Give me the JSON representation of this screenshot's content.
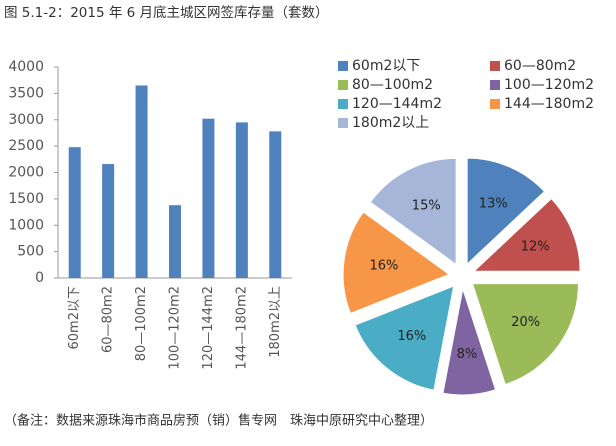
{
  "title": "图 5.1-2：2015 年 6 月底主城区网签库存量（套数）",
  "note": "（备注：数据来源珠海市商品房预（销）售专网　珠海中原研究中心整理）",
  "chart_data": [
    {
      "type": "bar",
      "categories": [
        "60m2以下",
        "60—80m2",
        "80—100m2",
        "100—120m2",
        "120—144m2",
        "144—180m2",
        "180m2以上"
      ],
      "values": [
        2480,
        2160,
        3650,
        1380,
        3020,
        2950,
        2780
      ],
      "color": "#4f81bd",
      "ylim": [
        0,
        4000
      ],
      "yticks": [
        0,
        500,
        1000,
        1500,
        2000,
        2500,
        3000,
        3500,
        4000
      ],
      "grid": false
    },
    {
      "type": "pie",
      "categories": [
        "60m2以下",
        "60—80m2",
        "80—100m2",
        "100—120m2",
        "120—144m2",
        "144—180m2",
        "180m2以上"
      ],
      "values": [
        13,
        12,
        20,
        8,
        16,
        16,
        15
      ],
      "value_labels": [
        "13%",
        "12%",
        "20%",
        "8%",
        "16%",
        "16%",
        "15%"
      ],
      "colors": [
        "#4f81bd",
        "#c0504d",
        "#9bbb59",
        "#8064a2",
        "#4bacc6",
        "#f79646",
        "#a5b6d8"
      ],
      "legend": "top"
    }
  ]
}
